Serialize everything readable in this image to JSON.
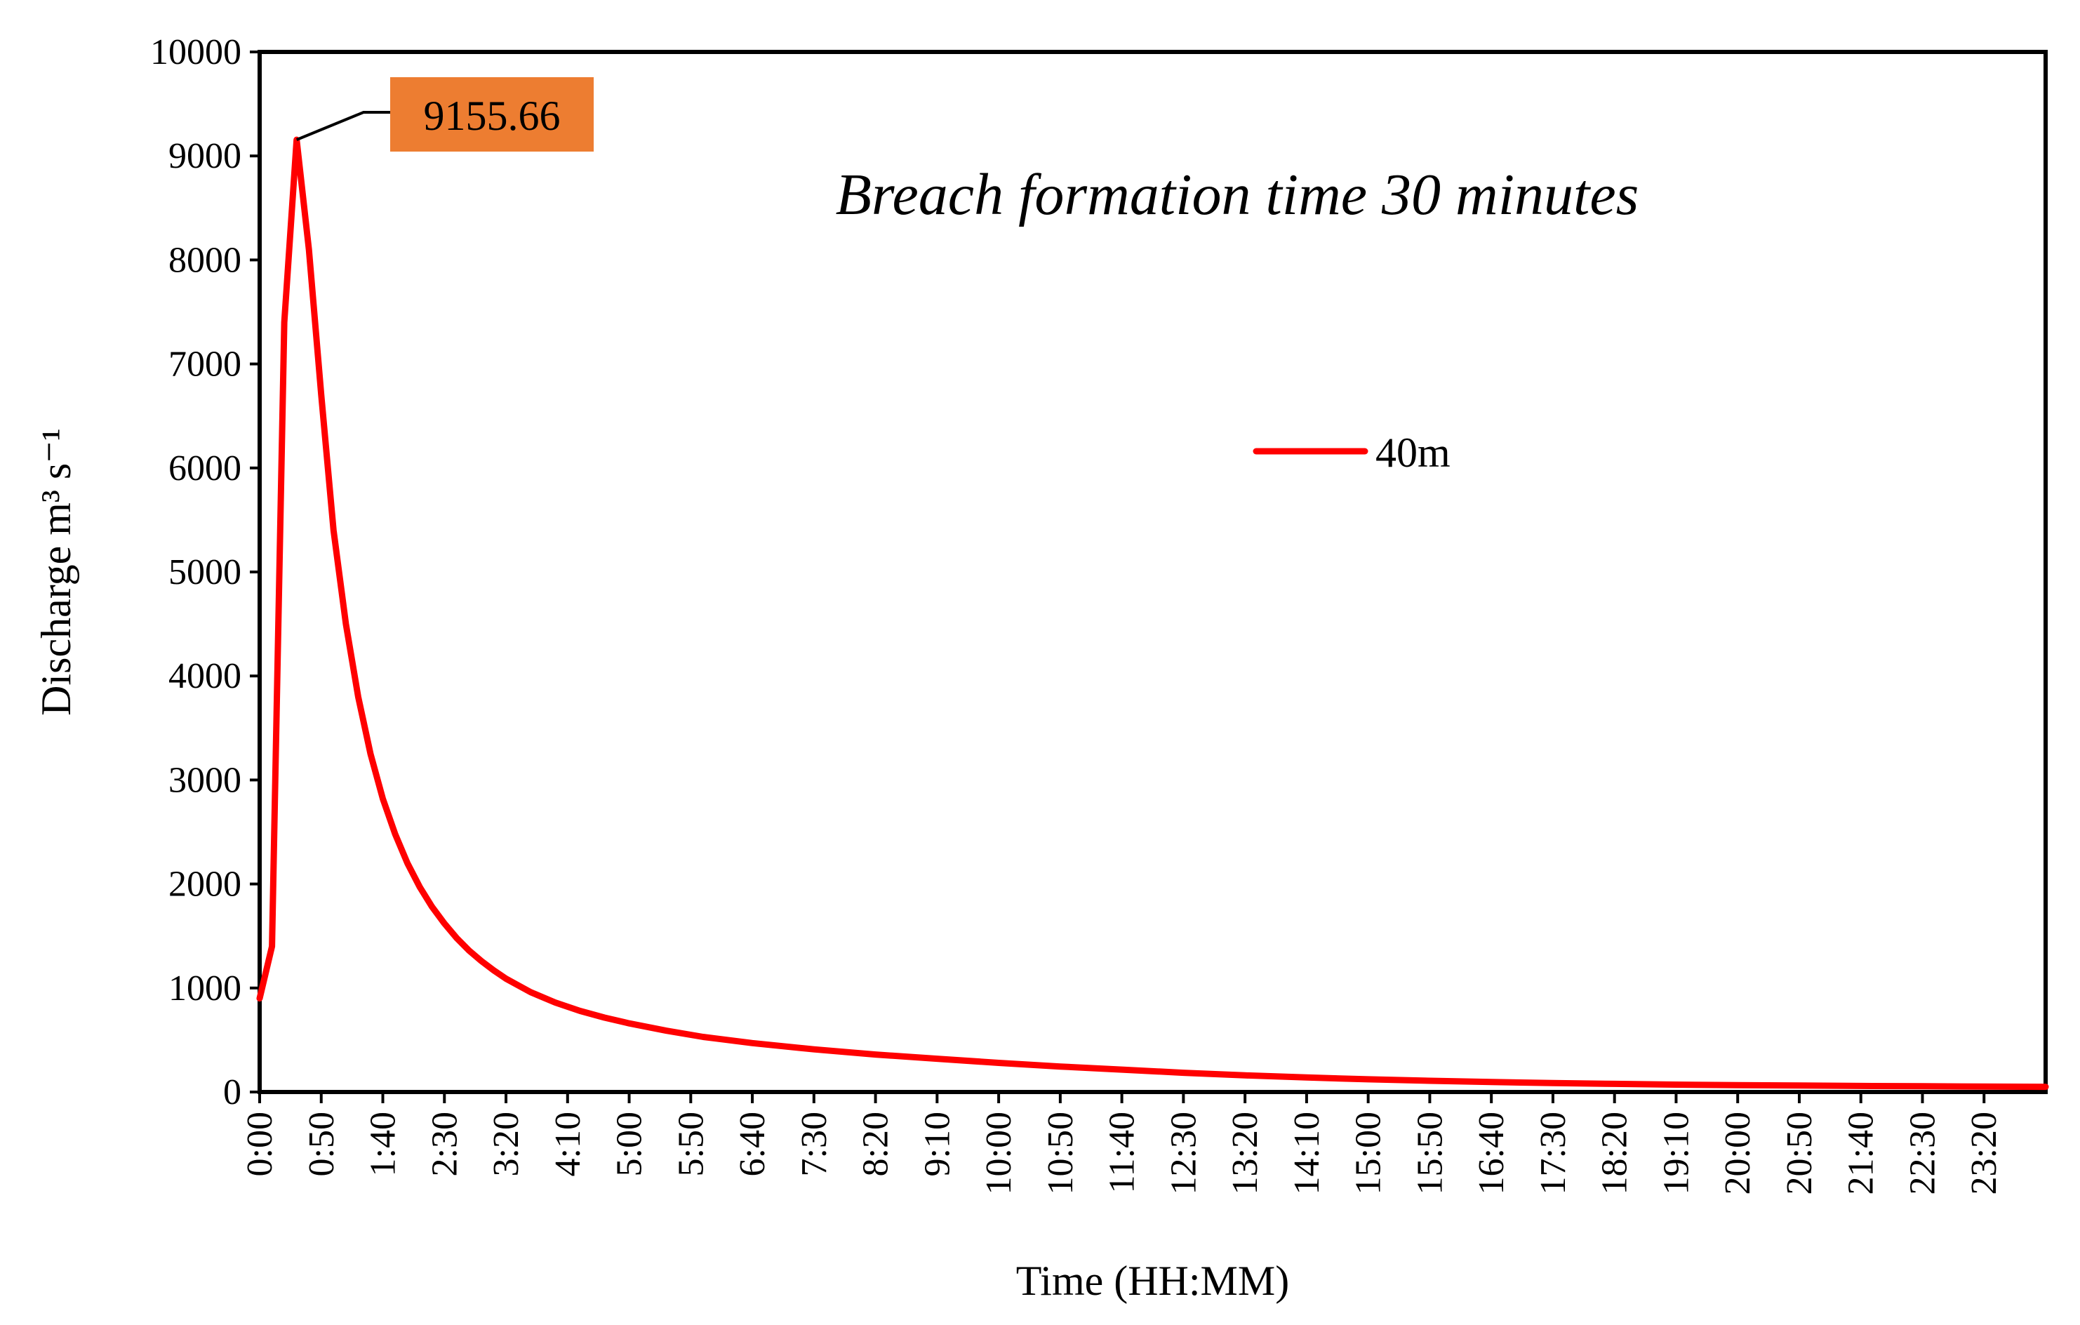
{
  "chart_data": {
    "type": "line",
    "title": "Breach formation time 30 minutes",
    "xlabel": "Time (HH:MM)",
    "ylabel": "Discharge m³ s⁻¹",
    "ylim": [
      0,
      10000
    ],
    "xlim_minutes": [
      0,
      1450
    ],
    "y_ticks": [
      0,
      1000,
      2000,
      3000,
      4000,
      5000,
      6000,
      7000,
      8000,
      9000,
      10000
    ],
    "x_tick_labels": [
      "0:00",
      "0:50",
      "1:40",
      "2:30",
      "3:20",
      "4:10",
      "5:00",
      "5:50",
      "6:40",
      "7:30",
      "8:20",
      "9:10",
      "10:00",
      "10:50",
      "11:40",
      "12:30",
      "13:20",
      "14:10",
      "15:00",
      "15:50",
      "16:40",
      "17:30",
      "18:20",
      "19:10",
      "20:00",
      "20:50",
      "21:40",
      "22:30",
      "23:20"
    ],
    "x_tick_step_minutes": 50,
    "grid": false,
    "legend_position": "center-right",
    "series": [
      {
        "name": "40m",
        "color": "#ff0000",
        "x_minutes": [
          0,
          10,
          20,
          30,
          40,
          50,
          60,
          70,
          80,
          90,
          100,
          110,
          120,
          130,
          140,
          150,
          160,
          170,
          180,
          190,
          200,
          220,
          240,
          260,
          280,
          300,
          330,
          360,
          400,
          450,
          500,
          550,
          600,
          650,
          700,
          750,
          800,
          850,
          900,
          950,
          1000,
          1050,
          1100,
          1150,
          1200,
          1250,
          1300,
          1350,
          1400,
          1450
        ],
        "values": [
          900,
          1400,
          7400,
          9155.66,
          8100,
          6700,
          5400,
          4500,
          3800,
          3250,
          2820,
          2480,
          2200,
          1970,
          1780,
          1620,
          1480,
          1360,
          1260,
          1170,
          1090,
          960,
          860,
          780,
          715,
          660,
          590,
          530,
          470,
          410,
          360,
          320,
          280,
          245,
          215,
          185,
          160,
          140,
          122,
          108,
          96,
          86,
          78,
          71,
          66,
          62,
          58,
          55,
          52,
          50
        ]
      }
    ],
    "annotations": [
      {
        "text": "9155.66",
        "x_minutes": 30,
        "y": 9155.66,
        "box_color": "#ed7d31"
      }
    ]
  }
}
